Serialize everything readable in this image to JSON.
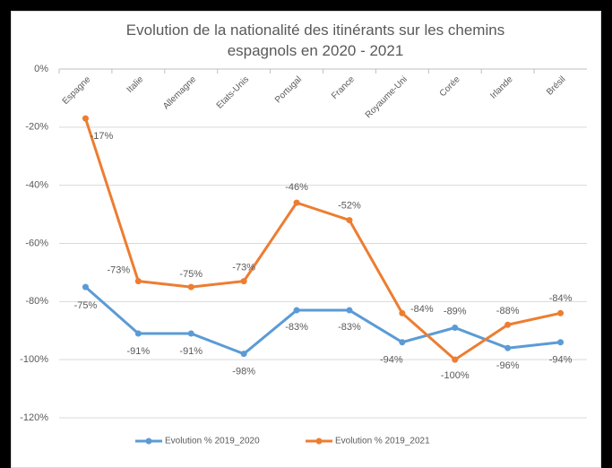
{
  "chart_data": {
    "type": "line",
    "title": "Evolution de la nationalité des itinérants sur les chemins espagnols en 2020 - 2021",
    "categories": [
      "Espagne",
      "Italie",
      "Allemagne",
      "Etats-Unis",
      "Portugal",
      "France",
      "Royaume-Uni",
      "Corée",
      "Irlande",
      "Brésil"
    ],
    "series": [
      {
        "name": "Evolution % 2019_2020",
        "color": "#5b9bd5",
        "values": [
          -75,
          -91,
          -91,
          -98,
          -83,
          -83,
          -94,
          -89,
          -96,
          -94
        ],
        "value_labels": [
          "-75%",
          "-91%",
          "-91%",
          "-98%",
          "-83%",
          "-83%",
          "-94%",
          "-89%",
          "-96%",
          "-94%"
        ]
      },
      {
        "name": "Evolution % 2019_2021",
        "color": "#ed7d31",
        "values": [
          -17,
          -73,
          -75,
          -73,
          -46,
          -52,
          -84,
          -100,
          -88,
          -84
        ],
        "value_labels": [
          "-17%",
          "-73%",
          "-75%",
          "-73%",
          "-46%",
          "-52%",
          "-84%",
          "-100%",
          "-88%",
          "-84%"
        ]
      }
    ],
    "ylim": [
      -120,
      0
    ],
    "yticks": [
      {
        "value": -120,
        "label": "-120%"
      },
      {
        "value": -100,
        "label": "-100%"
      },
      {
        "value": -80,
        "label": "-80%"
      },
      {
        "value": -60,
        "label": "-60%"
      },
      {
        "value": -40,
        "label": "-40%"
      },
      {
        "value": -20,
        "label": "-20%"
      },
      {
        "value": 0,
        "label": "0%"
      }
    ],
    "grid": true,
    "legend": "bottom"
  }
}
